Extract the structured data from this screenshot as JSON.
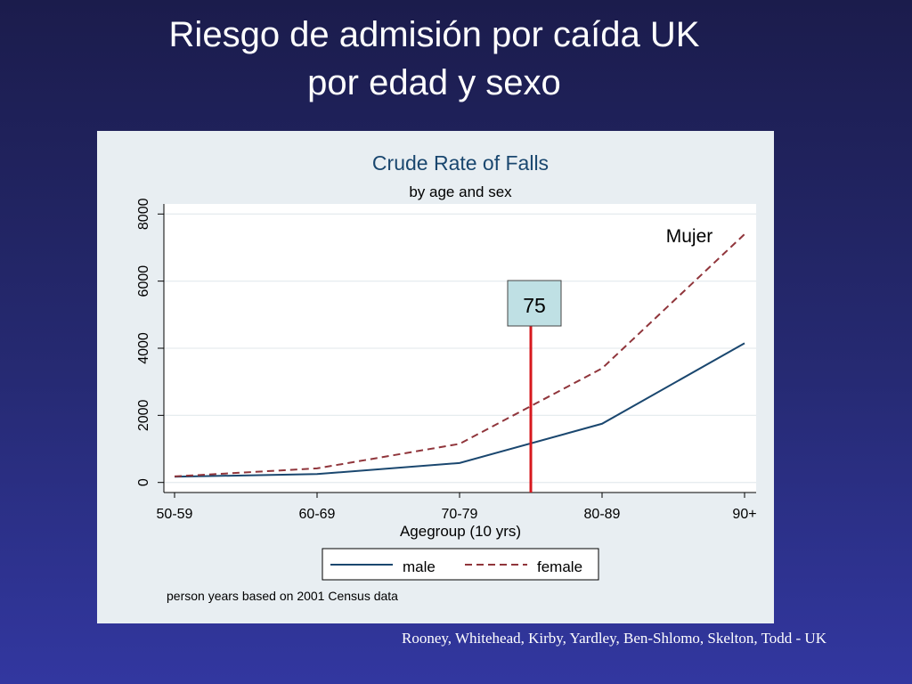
{
  "slide": {
    "title_line1": "Riesgo de admisión por caída UK",
    "title_line2": "por edad y sexo",
    "citation": "Rooney, Whitehead, Kirby, Yardley, Ben-Shlomo, Skelton, Todd - UK"
  },
  "chart_data": {
    "type": "line",
    "title": "Crude Rate of Falls",
    "subtitle": "by age and sex",
    "xlabel": "Agegroup (10 yrs)",
    "ylabel": "",
    "categories": [
      "50-59",
      "60-69",
      "70-79",
      "80-89",
      "90+"
    ],
    "yticks": [
      0,
      2000,
      4000,
      6000,
      8000
    ],
    "ytick_labels": [
      "0",
      "2000",
      "4000",
      "6000",
      "8000"
    ],
    "ylim": [
      -300,
      8300
    ],
    "grid": true,
    "series": [
      {
        "name": "male",
        "values": [
          170,
          250,
          580,
          1750,
          4150
        ],
        "color": "#1a476f",
        "dash": "solid"
      },
      {
        "name": "female",
        "values": [
          180,
          420,
          1150,
          3400,
          7400
        ],
        "color": "#90353b",
        "dash": "dashed"
      }
    ],
    "legend_position": "bottom",
    "annotations": {
      "series_label": "Mujer",
      "marker_label": "75",
      "marker_color": "#d7181e",
      "marker_box_color": "#bfe0e4",
      "note": "person years based on 2001 Census data"
    }
  }
}
